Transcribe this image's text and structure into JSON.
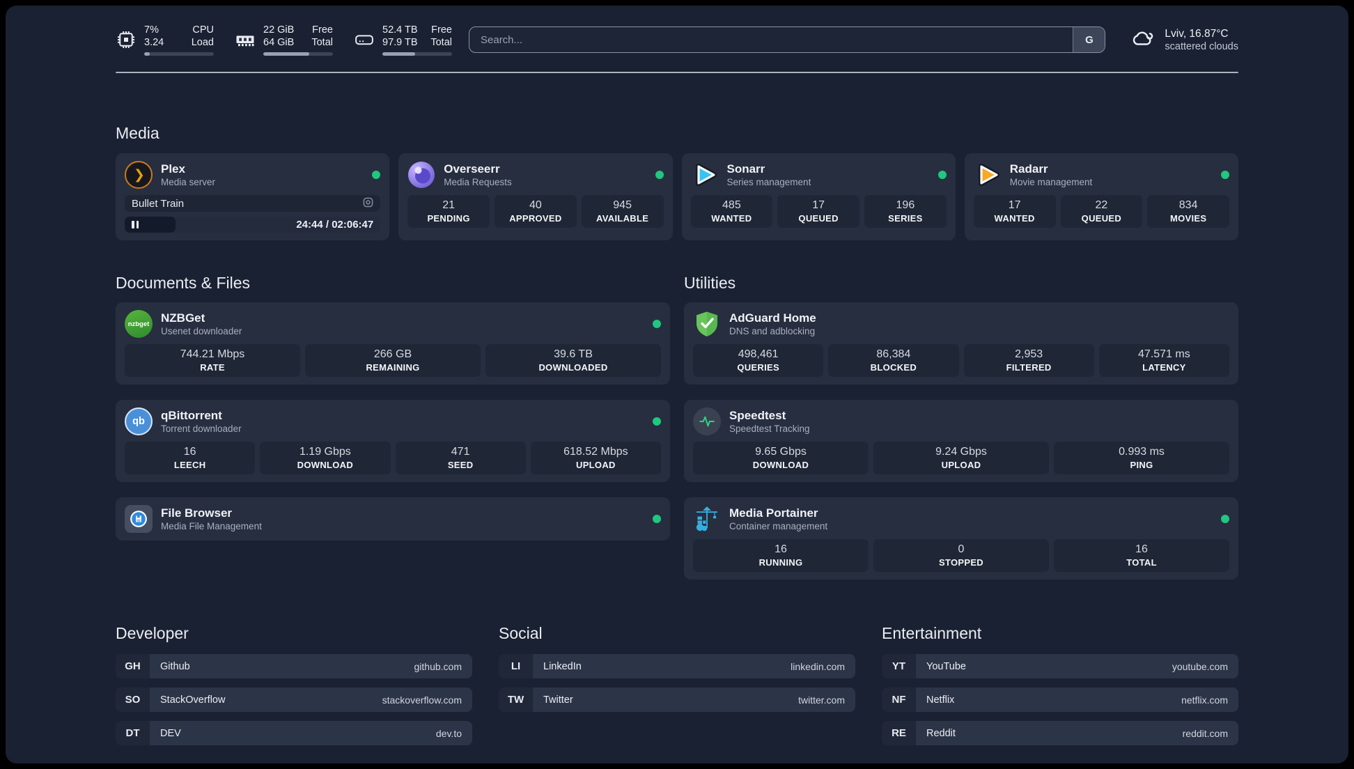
{
  "topbar": {
    "stats": [
      {
        "icon": "cpu",
        "values": [
          "7%",
          "3.24"
        ],
        "labels": [
          "CPU",
          "Load"
        ],
        "progress": 8
      },
      {
        "icon": "ram",
        "values": [
          "22 GiB",
          "64 GiB"
        ],
        "labels": [
          "Free",
          "Total"
        ],
        "progress": 66
      },
      {
        "icon": "disk",
        "values": [
          "52.4 TB",
          "97.9 TB"
        ],
        "labels": [
          "Free",
          "Total"
        ],
        "progress": 47
      }
    ],
    "search": {
      "placeholder": "Search...",
      "button_label": "G"
    },
    "weather": {
      "location_temp": "Lviv, 16.87°C",
      "condition": "scattered clouds"
    }
  },
  "sections": {
    "media": "Media",
    "documents": "Documents & Files",
    "utilities": "Utilities",
    "developer": "Developer",
    "social": "Social",
    "entertainment": "Entertainment"
  },
  "apps": {
    "plex": {
      "name": "Plex",
      "description": "Media server",
      "now_playing": "Bullet Train",
      "time_display": "24:44 / 02:06:47",
      "progress_percent": 20
    },
    "overseerr": {
      "name": "Overseerr",
      "description": "Media Requests",
      "stats": [
        {
          "value": "21",
          "label": "PENDING"
        },
        {
          "value": "40",
          "label": "APPROVED"
        },
        {
          "value": "945",
          "label": "AVAILABLE"
        }
      ]
    },
    "sonarr": {
      "name": "Sonarr",
      "description": "Series management",
      "stats": [
        {
          "value": "485",
          "label": "WANTED"
        },
        {
          "value": "17",
          "label": "QUEUED"
        },
        {
          "value": "196",
          "label": "SERIES"
        }
      ]
    },
    "radarr": {
      "name": "Radarr",
      "description": "Movie management",
      "stats": [
        {
          "value": "17",
          "label": "WANTED"
        },
        {
          "value": "22",
          "label": "QUEUED"
        },
        {
          "value": "834",
          "label": "MOVIES"
        }
      ]
    },
    "nzbget": {
      "name": "NZBGet",
      "description": "Usenet downloader",
      "icon_text": "nzbget",
      "stats": [
        {
          "value": "744.21 Mbps",
          "label": "RATE"
        },
        {
          "value": "266 GB",
          "label": "REMAINING"
        },
        {
          "value": "39.6 TB",
          "label": "DOWNLOADED"
        }
      ]
    },
    "qbittorrent": {
      "name": "qBittorrent",
      "description": "Torrent downloader",
      "icon_text": "qb",
      "stats": [
        {
          "value": "16",
          "label": "LEECH"
        },
        {
          "value": "1.19 Gbps",
          "label": "DOWNLOAD"
        },
        {
          "value": "471",
          "label": "SEED"
        },
        {
          "value": "618.52 Mbps",
          "label": "UPLOAD"
        }
      ]
    },
    "filebrowser": {
      "name": "File Browser",
      "description": "Media File Management"
    },
    "adguard": {
      "name": "AdGuard Home",
      "description": "DNS and adblocking",
      "stats": [
        {
          "value": "498,461",
          "label": "QUERIES"
        },
        {
          "value": "86,384",
          "label": "BLOCKED"
        },
        {
          "value": "2,953",
          "label": "FILTERED"
        },
        {
          "value": "47.571 ms",
          "label": "LATENCY"
        }
      ]
    },
    "speedtest": {
      "name": "Speedtest",
      "description": "Speedtest Tracking",
      "stats": [
        {
          "value": "9.65 Gbps",
          "label": "DOWNLOAD"
        },
        {
          "value": "9.24 Gbps",
          "label": "UPLOAD"
        },
        {
          "value": "0.993 ms",
          "label": "PING"
        }
      ]
    },
    "portainer": {
      "name": "Media Portainer",
      "description": "Container management",
      "stats": [
        {
          "value": "16",
          "label": "RUNNING"
        },
        {
          "value": "0",
          "label": "STOPPED"
        },
        {
          "value": "16",
          "label": "TOTAL"
        }
      ]
    }
  },
  "bookmarks": {
    "developer": [
      {
        "abbr": "GH",
        "name": "Github",
        "url": "github.com"
      },
      {
        "abbr": "SO",
        "name": "StackOverflow",
        "url": "stackoverflow.com"
      },
      {
        "abbr": "DT",
        "name": "DEV",
        "url": "dev.to"
      }
    ],
    "social": [
      {
        "abbr": "LI",
        "name": "LinkedIn",
        "url": "linkedin.com"
      },
      {
        "abbr": "TW",
        "name": "Twitter",
        "url": "twitter.com"
      }
    ],
    "entertainment": [
      {
        "abbr": "YT",
        "name": "YouTube",
        "url": "youtube.com"
      },
      {
        "abbr": "NF",
        "name": "Netflix",
        "url": "netflix.com"
      },
      {
        "abbr": "RE",
        "name": "Reddit",
        "url": "reddit.com"
      }
    ]
  },
  "colors": {
    "status_online": "#1fc77f"
  }
}
